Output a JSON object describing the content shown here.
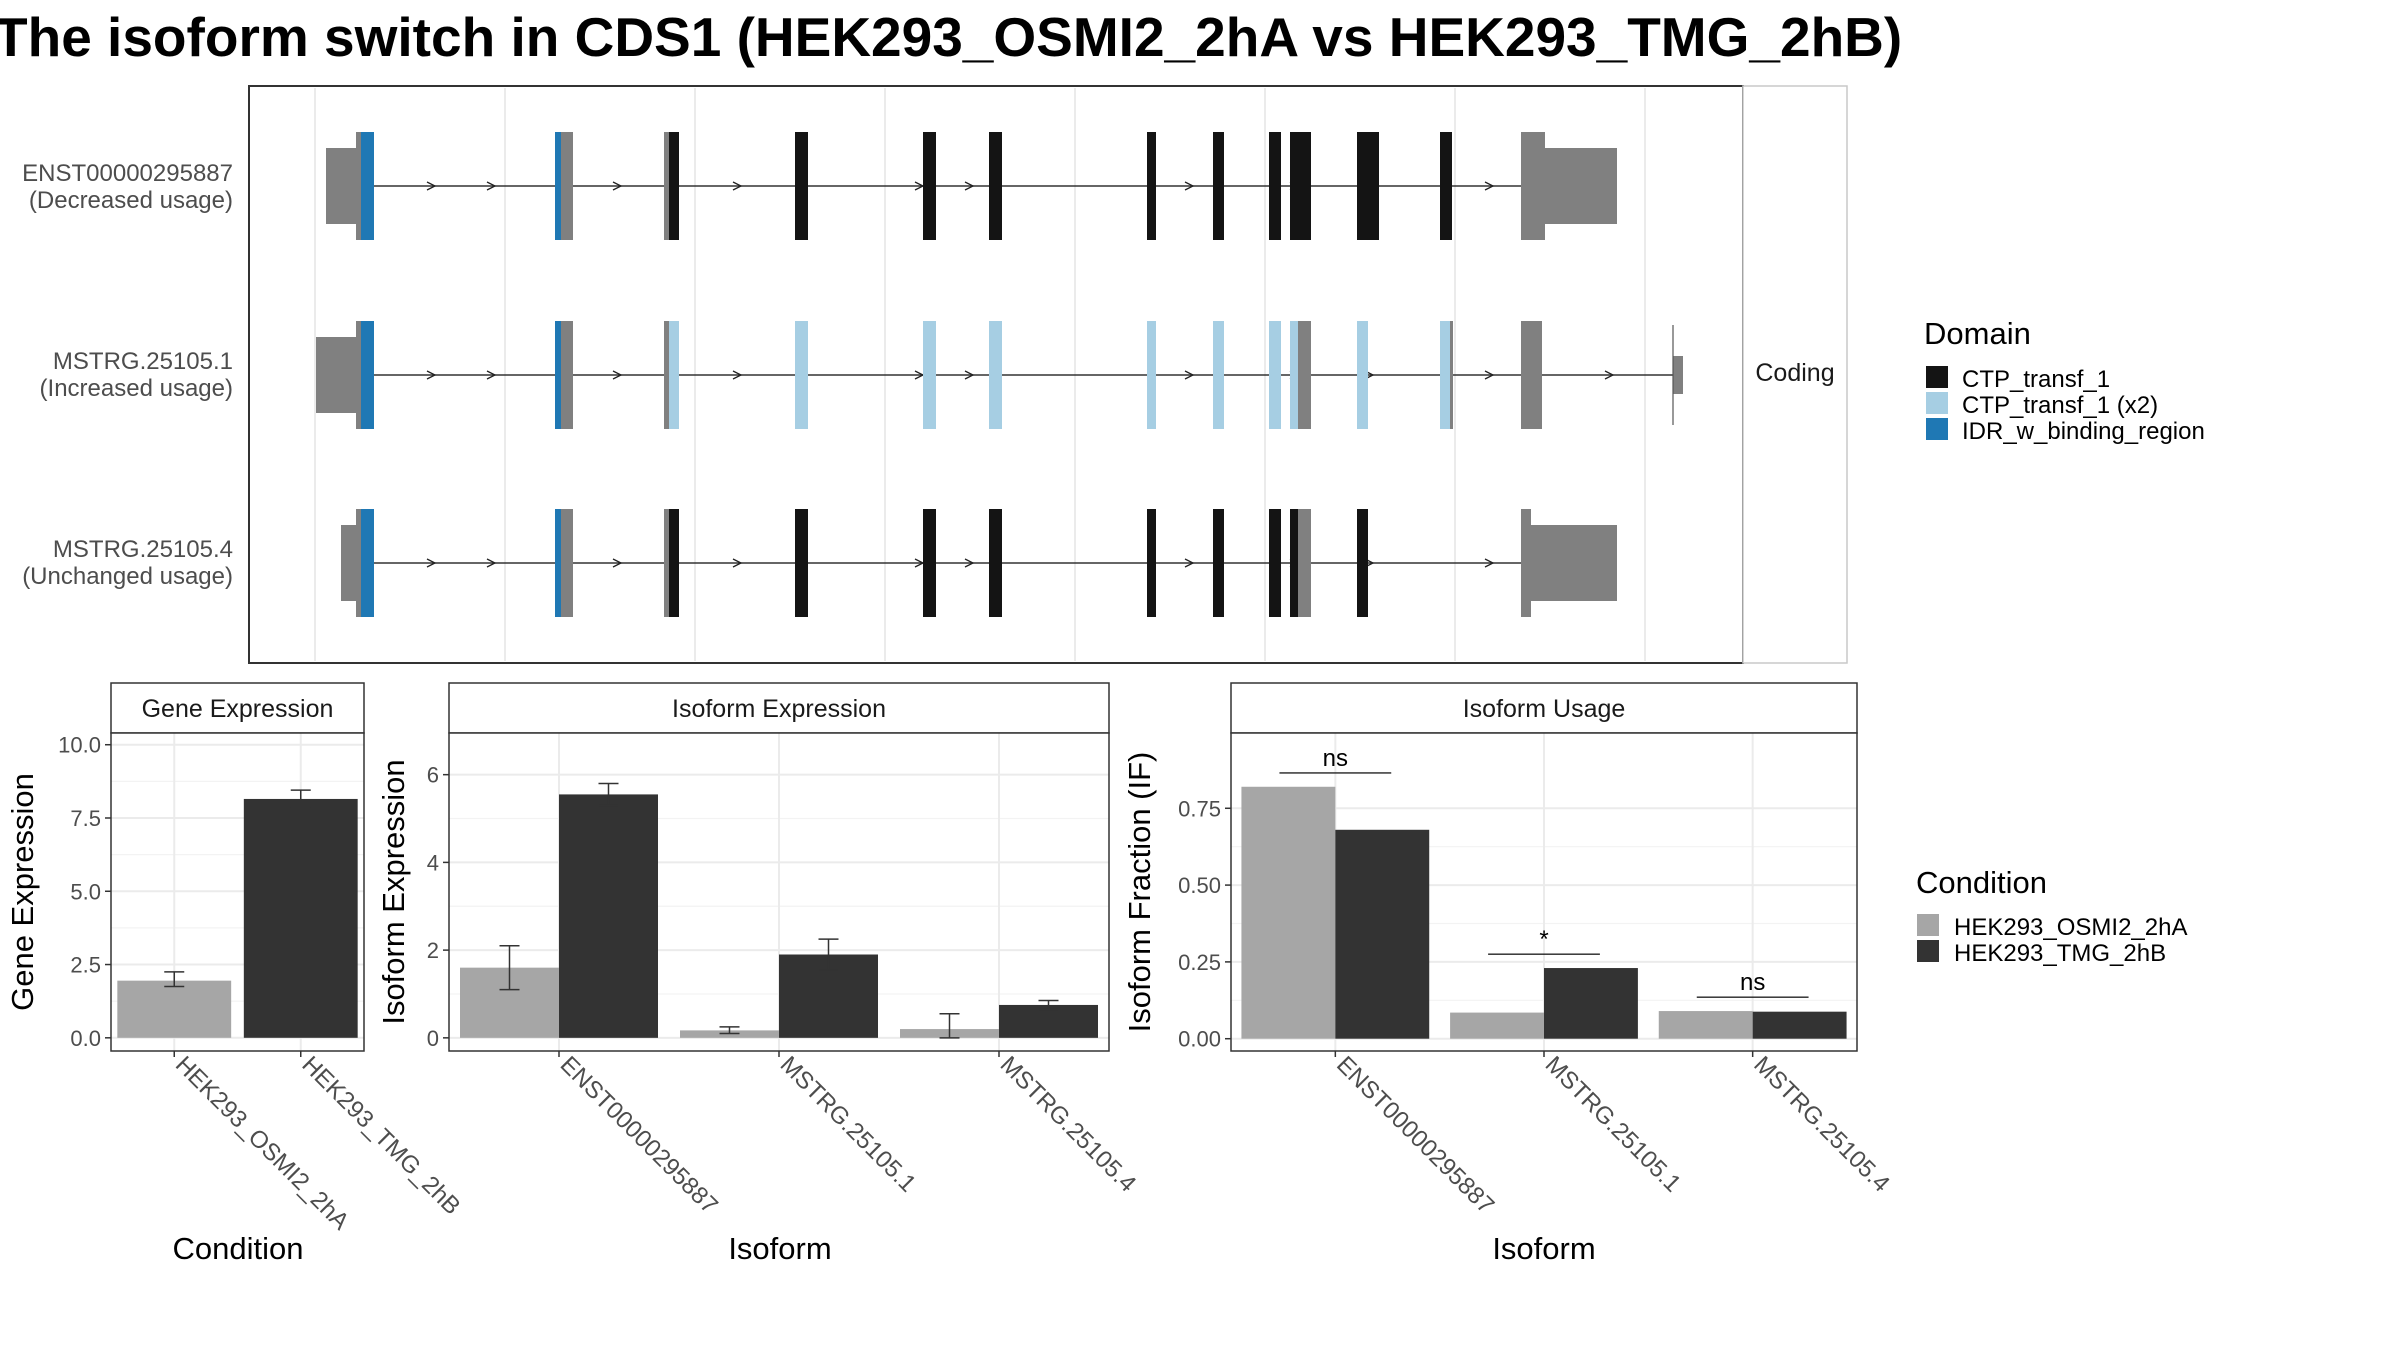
{
  "title": "The isoform switch in CDS1 (HEK293_OSMI2_2hA vs HEK293_TMG_2hB)",
  "colors": {
    "domain_ctp": "#141414",
    "domain_ctp_x2": "#a6cee3",
    "domain_idr": "#1f78b4",
    "utr": "#808080",
    "cond_a": "#a6a6a6",
    "cond_b": "#333333",
    "strip_bg": "#ffffff",
    "grid": "#ebebeb"
  },
  "structure_panel": {
    "strip_label": "Coding",
    "tracks": [
      {
        "id": "ENST00000295887",
        "name": "ENST00000295887",
        "usage": "(Decreased usage)"
      },
      {
        "id": "MSTRG.25105.1",
        "name": "MSTRG.25105.1",
        "usage": "(Increased usage)"
      },
      {
        "id": "MSTRG.25105.4",
        "name": "MSTRG.25105.4",
        "usage": "(Unchanged usage)"
      }
    ]
  },
  "legends": {
    "domain": {
      "title": "Domain",
      "items": [
        {
          "label": "CTP_transf_1",
          "color": "#141414"
        },
        {
          "label": "CTP_transf_1 (x2)",
          "color": "#a6cee3"
        },
        {
          "label": "IDR_w_binding_region",
          "color": "#1f78b4"
        }
      ]
    },
    "condition": {
      "title": "Condition",
      "items": [
        {
          "label": "HEK293_OSMI2_2hA",
          "color": "#a6a6a6"
        },
        {
          "label": "HEK293_TMG_2hB",
          "color": "#333333"
        }
      ]
    }
  },
  "chart_data": [
    {
      "type": "bar",
      "panel": "Gene Expression",
      "xlabel": "Condition",
      "ylabel": "Gene Expression",
      "categories": [
        "HEK293_OSMI2_2hA",
        "HEK293_TMG_2hB"
      ],
      "values": [
        1.95,
        8.15
      ],
      "error_low": [
        1.75,
        7.85
      ],
      "error_high": [
        2.25,
        8.45
      ],
      "ylim": [
        -0.45,
        10.4
      ],
      "yticks": [
        0.0,
        2.5,
        5.0,
        7.5,
        10.0
      ],
      "ytick_labels": [
        "0.0",
        "2.5",
        "5.0",
        "7.5",
        "10.0"
      ],
      "grid": true
    },
    {
      "type": "bar",
      "panel": "Isoform Expression",
      "xlabel": "Isoform",
      "ylabel": "Isoform Expression",
      "categories": [
        "ENST00000295887",
        "MSTRG.25105.1",
        "MSTRG.25105.4"
      ],
      "series": [
        {
          "name": "HEK293_OSMI2_2hA",
          "values": [
            1.6,
            0.17,
            0.2
          ],
          "error_low": [
            1.1,
            0.1,
            0.0
          ],
          "error_high": [
            2.1,
            0.25,
            0.55
          ]
        },
        {
          "name": "HEK293_TMG_2hB",
          "values": [
            5.55,
            1.9,
            0.75
          ],
          "error_low": [
            5.3,
            1.55,
            0.65
          ],
          "error_high": [
            5.8,
            2.25,
            0.85
          ]
        }
      ],
      "ylim": [
        -0.3,
        6.95
      ],
      "yticks": [
        0,
        2,
        4,
        6
      ],
      "ytick_labels": [
        "0",
        "2",
        "4",
        "6"
      ],
      "grid": true
    },
    {
      "type": "bar",
      "panel": "Isoform Usage",
      "xlabel": "Isoform",
      "ylabel": "Isoform Fraction (IF)",
      "categories": [
        "ENST00000295887",
        "MSTRG.25105.1",
        "MSTRG.25105.4"
      ],
      "series": [
        {
          "name": "HEK293_OSMI2_2hA",
          "values": [
            0.82,
            0.085,
            0.09
          ]
        },
        {
          "name": "HEK293_TMG_2hB",
          "values": [
            0.68,
            0.23,
            0.088
          ]
        }
      ],
      "significance": [
        {
          "label": "ns",
          "y": 0.865
        },
        {
          "label": "*",
          "y": 0.275
        },
        {
          "label": "ns",
          "y": 0.135
        }
      ],
      "ylim": [
        -0.04,
        0.995
      ],
      "yticks": [
        0.0,
        0.25,
        0.5,
        0.75
      ],
      "ytick_labels": [
        "0.00",
        "0.25",
        "0.50",
        "0.75"
      ],
      "grid": true
    }
  ]
}
